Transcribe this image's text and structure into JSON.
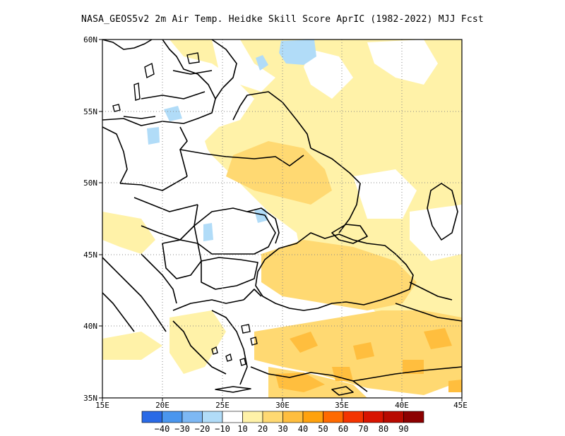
{
  "title": "NASA_GEOS5v2  2m Air Temp. Heidke Skill Score AprIC (1982-2022) MJJ Fcst",
  "map": {
    "lat_ticks": [
      "60N",
      "55N",
      "50N",
      "45N",
      "40N",
      "35N"
    ],
    "lon_ticks": [
      "15E",
      "20E",
      "25E",
      "30E",
      "35E",
      "40E",
      "45E"
    ],
    "extent": {
      "lon": [
        15,
        45
      ],
      "lat": [
        35,
        60
      ]
    },
    "grid": true
  },
  "colorbar": {
    "labels": [
      "-40",
      "-30",
      "-20",
      "-10",
      "10",
      "20",
      "30",
      "40",
      "50",
      "60",
      "70",
      "80",
      "90"
    ],
    "colors": [
      "#2a6ae6",
      "#4a96ee",
      "#7db8f4",
      "#b1dcf8",
      "#ffffff",
      "#fff2a8",
      "#ffd972",
      "#ffbe3e",
      "#ffa20e",
      "#ff6a00",
      "#f43400",
      "#d81400",
      "#b80a00",
      "#8c0000"
    ]
  }
}
